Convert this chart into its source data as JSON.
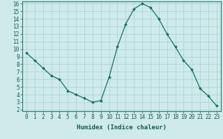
{
  "x": [
    0,
    1,
    2,
    3,
    4,
    5,
    6,
    7,
    8,
    9,
    10,
    11,
    12,
    13,
    14,
    15,
    16,
    17,
    18,
    19,
    20,
    21,
    22,
    23
  ],
  "y": [
    9.5,
    8.5,
    7.5,
    6.5,
    6.0,
    4.5,
    4.0,
    3.5,
    3.0,
    3.2,
    6.3,
    10.3,
    13.3,
    15.3,
    16.0,
    15.5,
    14.0,
    12.0,
    10.3,
    8.5,
    7.3,
    4.8,
    3.8,
    2.5
  ],
  "line_color": "#1a6b5a",
  "marker": "D",
  "marker_size": 2.0,
  "bg_color": "#ceeaea",
  "grid_color": "#aacfcf",
  "xlabel": "Humidex (Indice chaleur)",
  "xlim": [
    -0.5,
    23.5
  ],
  "ylim": [
    1.8,
    16.3
  ],
  "yticks": [
    2,
    3,
    4,
    5,
    6,
    7,
    8,
    9,
    10,
    11,
    12,
    13,
    14,
    15,
    16
  ],
  "xticks": [
    0,
    1,
    2,
    3,
    4,
    5,
    6,
    7,
    8,
    9,
    10,
    11,
    12,
    13,
    14,
    15,
    16,
    17,
    18,
    19,
    20,
    21,
    22,
    23
  ],
  "tick_fontsize": 5.5,
  "label_fontsize": 6.5,
  "axis_color": "#2a7a6a",
  "tick_color": "#1a5a4a"
}
